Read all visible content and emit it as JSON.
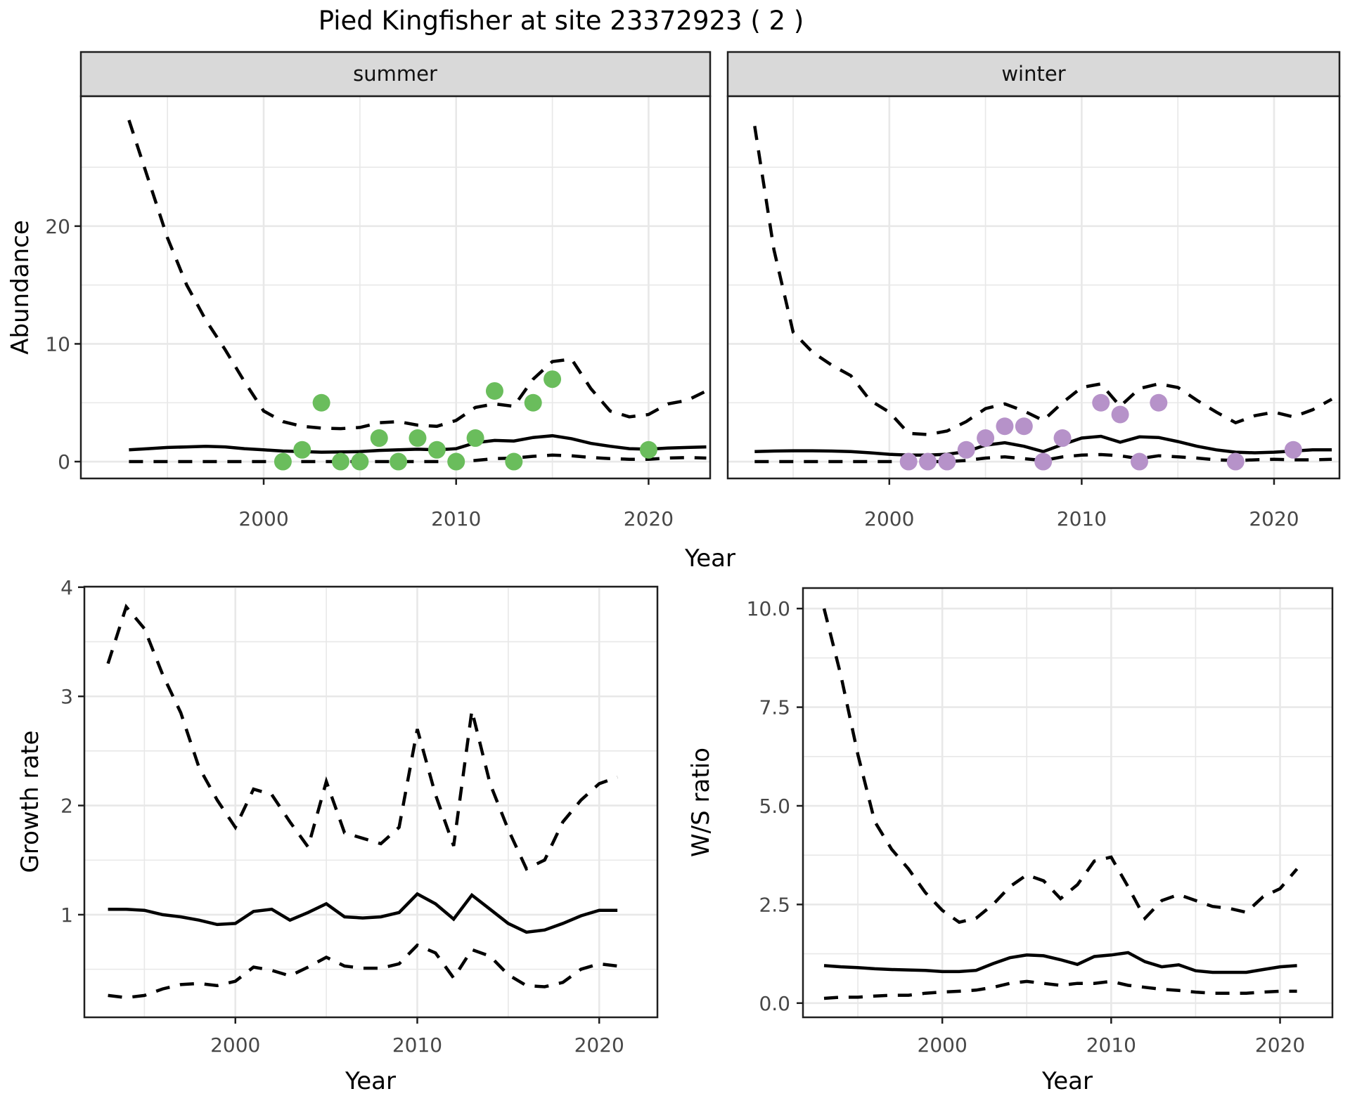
{
  "title": "Pied Kingfisher at site 23372923 ( 2 )",
  "colors": {
    "summer_point": "#6abd5c",
    "winter_point": "#b692c9",
    "line": "#000000",
    "grid": "#e8e8e8",
    "strip_bg": "#d9d9d9",
    "panel_border": "#1f1f1f",
    "axis_text": "#474747"
  },
  "chart_data": [
    {
      "id": "abundance",
      "type": "line",
      "ylabel": "Abundance",
      "xlabel": "Year",
      "years": {
        "from": 1993,
        "to": 2023
      },
      "xticks": [
        {
          "v": 2000,
          "label": "2000"
        },
        {
          "v": 2010,
          "label": "2010"
        },
        {
          "v": 2020,
          "label": "2020"
        }
      ],
      "yticks": [
        {
          "v": 0,
          "label": "0"
        },
        {
          "v": 10,
          "label": "10"
        },
        {
          "v": 20,
          "label": "20"
        }
      ],
      "minor_x": [
        1995,
        2005,
        2015
      ],
      "minor_y": [
        5,
        15,
        25
      ],
      "facets": [
        {
          "label": "summer",
          "point_color": "#6abd5c",
          "upper_ci": [
            29,
            24,
            19,
            15,
            12,
            9.5,
            6.8,
            4.3,
            3.4,
            3.0,
            2.85,
            2.8,
            2.9,
            3.3,
            3.4,
            3.1,
            3.0,
            3.5,
            4.6,
            4.9,
            4.7,
            7.0,
            8.5,
            8.7,
            6.2,
            4.3,
            3.8,
            4.0,
            4.9,
            5.2,
            6.0
          ],
          "mean": [
            1.0,
            1.1,
            1.2,
            1.25,
            1.3,
            1.25,
            1.1,
            1.0,
            0.9,
            0.85,
            0.8,
            0.82,
            0.85,
            0.95,
            1.0,
            1.05,
            1.0,
            1.1,
            1.6,
            1.8,
            1.75,
            2.05,
            2.2,
            1.95,
            1.55,
            1.3,
            1.1,
            1.05,
            1.15,
            1.2,
            1.25
          ],
          "lower_ci": [
            0,
            0,
            0,
            0,
            0,
            0,
            0,
            0,
            0,
            0,
            0,
            0,
            0,
            0,
            0,
            0,
            0,
            0,
            0.1,
            0.25,
            0.3,
            0.45,
            0.55,
            0.5,
            0.35,
            0.25,
            0.2,
            0.2,
            0.3,
            0.35,
            0.3
          ],
          "observations": [
            [
              2001,
              0
            ],
            [
              2002,
              1
            ],
            [
              2003,
              5
            ],
            [
              2004,
              0
            ],
            [
              2005,
              0
            ],
            [
              2006,
              2
            ],
            [
              2007,
              0
            ],
            [
              2008,
              2
            ],
            [
              2009,
              1
            ],
            [
              2010,
              0
            ],
            [
              2011,
              2
            ],
            [
              2012,
              6
            ],
            [
              2013,
              0
            ],
            [
              2014,
              5
            ],
            [
              2015,
              7
            ],
            [
              2020,
              1
            ]
          ]
        },
        {
          "label": "winter",
          "point_color": "#b692c9",
          "upper_ci": [
            28.5,
            18,
            11,
            9.3,
            8.2,
            7.3,
            5.2,
            4.2,
            2.4,
            2.3,
            2.6,
            3.4,
            4.5,
            4.9,
            4.3,
            3.5,
            5.0,
            6.3,
            6.6,
            4.7,
            6.2,
            6.6,
            6.3,
            5.2,
            4.2,
            3.3,
            3.9,
            4.2,
            3.8,
            4.4,
            5.3
          ],
          "mean": [
            0.85,
            0.9,
            0.92,
            0.92,
            0.9,
            0.85,
            0.75,
            0.62,
            0.55,
            0.55,
            0.62,
            0.85,
            1.4,
            1.6,
            1.3,
            0.85,
            1.45,
            2.0,
            2.15,
            1.65,
            2.1,
            2.05,
            1.7,
            1.3,
            1.0,
            0.8,
            0.75,
            0.8,
            0.9,
            1.0,
            1.0
          ],
          "lower_ci": [
            0,
            0,
            0,
            0,
            0,
            0,
            0,
            0,
            0,
            0,
            0,
            0.1,
            0.3,
            0.4,
            0.25,
            0.1,
            0.4,
            0.55,
            0.6,
            0.5,
            0.25,
            0.5,
            0.4,
            0.3,
            0.15,
            0.1,
            0.15,
            0.2,
            0.15,
            0.15,
            0.2
          ],
          "observations": [
            [
              2001,
              0
            ],
            [
              2002,
              0
            ],
            [
              2003,
              0
            ],
            [
              2004,
              1
            ],
            [
              2005,
              2
            ],
            [
              2006,
              3
            ],
            [
              2007,
              3
            ],
            [
              2008,
              0
            ],
            [
              2009,
              2
            ],
            [
              2011,
              5
            ],
            [
              2012,
              4
            ],
            [
              2013,
              0
            ],
            [
              2014,
              5
            ],
            [
              2018,
              0
            ],
            [
              2021,
              1
            ]
          ]
        }
      ]
    },
    {
      "id": "growth_rate",
      "type": "line",
      "ylabel": "Growth rate",
      "xlabel": "Year",
      "years": {
        "from": 1993,
        "to": 2021
      },
      "xticks": [
        {
          "v": 2000,
          "label": "2000"
        },
        {
          "v": 2010,
          "label": "2010"
        },
        {
          "v": 2020,
          "label": "2020"
        }
      ],
      "yticks": [
        {
          "v": 1,
          "label": "1"
        },
        {
          "v": 2,
          "label": "2"
        },
        {
          "v": 3,
          "label": "3"
        },
        {
          "v": 4,
          "label": "4"
        }
      ],
      "minor_x": [
        1995,
        2005,
        2015
      ],
      "minor_y": [
        0.5,
        1.5,
        2.5,
        3.5
      ],
      "series": {
        "upper_ci": [
          3.3,
          3.82,
          3.62,
          3.2,
          2.85,
          2.35,
          2.05,
          1.8,
          2.15,
          2.1,
          1.85,
          1.62,
          2.22,
          1.75,
          1.7,
          1.65,
          1.8,
          2.7,
          2.1,
          1.63,
          2.87,
          2.2,
          1.78,
          1.42,
          1.5,
          1.85,
          2.05,
          2.2,
          2.26
        ],
        "mean": [
          1.05,
          1.05,
          1.04,
          1.0,
          0.98,
          0.95,
          0.91,
          0.92,
          1.03,
          1.05,
          0.95,
          1.02,
          1.1,
          0.98,
          0.97,
          0.98,
          1.02,
          1.19,
          1.1,
          0.96,
          1.18,
          1.05,
          0.92,
          0.84,
          0.86,
          0.92,
          0.99,
          1.04,
          1.04
        ],
        "lower_ci": [
          0.26,
          0.24,
          0.26,
          0.32,
          0.36,
          0.37,
          0.35,
          0.39,
          0.52,
          0.49,
          0.44,
          0.52,
          0.61,
          0.53,
          0.51,
          0.51,
          0.55,
          0.72,
          0.65,
          0.42,
          0.68,
          0.62,
          0.45,
          0.35,
          0.34,
          0.38,
          0.5,
          0.55,
          0.53
        ]
      }
    },
    {
      "id": "ws_ratio",
      "type": "line",
      "ylabel": "W/S ratio",
      "xlabel": "Year",
      "years": {
        "from": 1993,
        "to": 2021
      },
      "xticks": [
        {
          "v": 2000,
          "label": "2000"
        },
        {
          "v": 2010,
          "label": "2010"
        },
        {
          "v": 2020,
          "label": "2020"
        }
      ],
      "yticks": [
        {
          "v": 0,
          "label": "0.0"
        },
        {
          "v": 2.5,
          "label": "2.5"
        },
        {
          "v": 5,
          "label": "5.0"
        },
        {
          "v": 7.5,
          "label": "7.5"
        },
        {
          "v": 10,
          "label": "10.0"
        }
      ],
      "minor_x": [
        1995,
        2005,
        2015
      ],
      "minor_y": [
        1.25,
        3.75,
        6.25,
        8.75
      ],
      "series": {
        "upper_ci": [
          10.0,
          8.3,
          6.3,
          4.6,
          3.9,
          3.4,
          2.8,
          2.35,
          2.05,
          2.15,
          2.5,
          2.95,
          3.25,
          3.1,
          2.65,
          3.0,
          3.6,
          3.7,
          2.95,
          2.15,
          2.6,
          2.75,
          2.6,
          2.45,
          2.4,
          2.3,
          2.7,
          2.9,
          3.4
        ],
        "mean": [
          0.95,
          0.92,
          0.9,
          0.87,
          0.85,
          0.84,
          0.83,
          0.8,
          0.8,
          0.83,
          1.0,
          1.15,
          1.22,
          1.2,
          1.1,
          0.98,
          1.18,
          1.22,
          1.28,
          1.05,
          0.92,
          0.97,
          0.82,
          0.78,
          0.78,
          0.78,
          0.85,
          0.92,
          0.95
        ],
        "lower_ci": [
          0.12,
          0.15,
          0.15,
          0.18,
          0.2,
          0.2,
          0.25,
          0.28,
          0.3,
          0.33,
          0.4,
          0.5,
          0.55,
          0.5,
          0.45,
          0.5,
          0.5,
          0.55,
          0.45,
          0.4,
          0.35,
          0.32,
          0.28,
          0.25,
          0.25,
          0.25,
          0.28,
          0.3,
          0.3
        ]
      }
    }
  ]
}
